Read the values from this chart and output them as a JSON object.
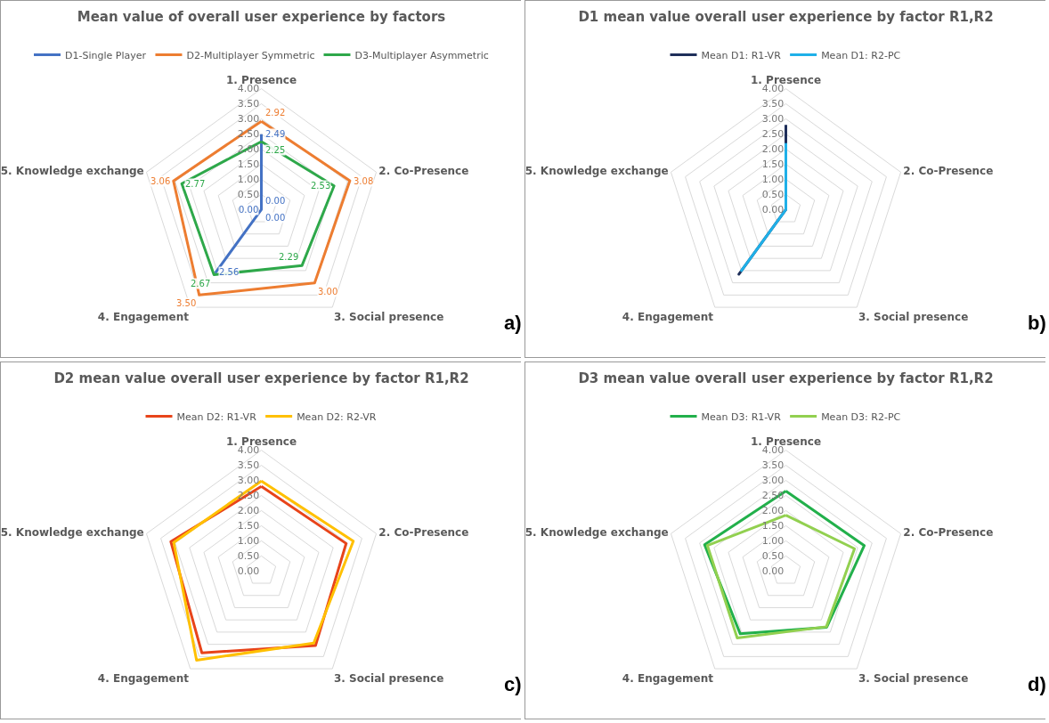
{
  "chart_data": [
    {
      "type": "radar",
      "title": "Mean value of overall user experience by factors",
      "categories": [
        "1. Presence",
        "2. Co-Presence",
        "3. Social presence",
        "4. Engagement",
        "5. Knowledge exchange"
      ],
      "ylim": [
        0,
        4
      ],
      "yticks": [
        {
          "value": 0,
          "label": "0.00"
        },
        {
          "value": 0.5,
          "label": "0.50"
        },
        {
          "value": 1,
          "label": "1.00"
        },
        {
          "value": 1.5,
          "label": "1.50"
        },
        {
          "value": 2,
          "label": "2.00"
        },
        {
          "value": 2.5,
          "label": "2.50"
        },
        {
          "value": 3,
          "label": "3.00"
        },
        {
          "value": 3.5,
          "label": "3.50"
        },
        {
          "value": 4,
          "label": "4.00"
        }
      ],
      "grid": true,
      "legend": "top",
      "marker": "none",
      "annotations": [
        "a)"
      ],
      "series": [
        {
          "name": "D1-Single Player",
          "color": "#4472c4",
          "values": [
            2.49,
            0,
            0,
            2.56,
            0
          ],
          "value_labels": [
            "2.49",
            "0.00",
            "0.00",
            "2.56",
            "0.00"
          ]
        },
        {
          "name": "D2-Multiplayer Symmetric",
          "color": "#ed7d31",
          "values": [
            2.92,
            3.08,
            3.0,
            3.5,
            3.06
          ],
          "value_labels": [
            "2.92",
            "3.08",
            "3.00",
            "3.50",
            "3.06"
          ]
        },
        {
          "name": "D3-Multiplayer Asymmetric",
          "color": "#2ea84a",
          "values": [
            2.25,
            2.53,
            2.29,
            2.67,
            2.77
          ],
          "value_labels": [
            "2.25",
            "2.53",
            "2.29",
            "2.67",
            "2.77"
          ]
        }
      ]
    },
    {
      "type": "radar",
      "title": "D1 mean value overall user experience by factor R1,R2",
      "categories": [
        "1. Presence",
        "2. Co-Presence",
        "3. Social presence",
        "4. Engagement",
        "5. Knowledge exchange"
      ],
      "ylim": [
        0,
        4
      ],
      "yticks": [
        {
          "value": 0,
          "label": "0.00"
        },
        {
          "value": 0.5,
          "label": "0.50"
        },
        {
          "value": 1,
          "label": "1.00"
        },
        {
          "value": 1.5,
          "label": "1.50"
        },
        {
          "value": 2,
          "label": "2.00"
        },
        {
          "value": 2.5,
          "label": "2.50"
        },
        {
          "value": 3,
          "label": "3.00"
        },
        {
          "value": 3.5,
          "label": "3.50"
        },
        {
          "value": 4,
          "label": "4.00"
        }
      ],
      "grid": true,
      "legend": "top",
      "marker": "none",
      "annotations": [
        "b)"
      ],
      "series": [
        {
          "name": "Mean D1: R1-VR",
          "color": "#1f2f5a",
          "values": [
            2.8,
            0,
            0,
            2.65,
            0
          ]
        },
        {
          "name": "Mean D1: R2-PC",
          "color": "#1fb0e8",
          "values": [
            2.2,
            0,
            0,
            2.5,
            0
          ]
        }
      ]
    },
    {
      "type": "radar",
      "title": "D2 mean value overall user experience by factor R1,R2",
      "categories": [
        "1. Presence",
        "2. Co-Presence",
        "3. Social presence",
        "4. Engagement",
        "5. Knowledge exchange"
      ],
      "ylim": [
        0,
        4
      ],
      "yticks": [
        {
          "value": 0,
          "label": "0.00"
        },
        {
          "value": 0.5,
          "label": "0.50"
        },
        {
          "value": 1,
          "label": "1.00"
        },
        {
          "value": 1.5,
          "label": "1.50"
        },
        {
          "value": 2,
          "label": "2.00"
        },
        {
          "value": 2.5,
          "label": "2.50"
        },
        {
          "value": 3,
          "label": "3.00"
        },
        {
          "value": 3.5,
          "label": "3.50"
        },
        {
          "value": 4,
          "label": "4.00"
        }
      ],
      "grid": true,
      "legend": "top",
      "marker": "none",
      "annotations": [
        "c)"
      ],
      "series": [
        {
          "name": "Mean D2: R1-VR",
          "color": "#e8441a",
          "values": [
            2.8,
            2.95,
            3.05,
            3.35,
            3.15
          ]
        },
        {
          "name": "Mean D2: R2-VR",
          "color": "#ffc000",
          "values": [
            2.98,
            3.2,
            2.95,
            3.65,
            3.05
          ]
        }
      ]
    },
    {
      "type": "radar",
      "title": "D3 mean value overall user experience by factor R1,R2",
      "categories": [
        "1. Presence",
        "2. Co-Presence",
        "3. Social presence",
        "4. Engagement",
        "5. Knowledge exchange"
      ],
      "ylim": [
        0,
        4
      ],
      "yticks": [
        {
          "value": 0,
          "label": "0.00"
        },
        {
          "value": 0.5,
          "label": "0.50"
        },
        {
          "value": 1,
          "label": "1.00"
        },
        {
          "value": 1.5,
          "label": "1.50"
        },
        {
          "value": 2,
          "label": "2.00"
        },
        {
          "value": 2.5,
          "label": "2.50"
        },
        {
          "value": 3,
          "label": "3.00"
        },
        {
          "value": 3.5,
          "label": "3.50"
        },
        {
          "value": 4,
          "label": "4.00"
        }
      ],
      "grid": true,
      "legend": "top",
      "marker": "none",
      "annotations": [
        "d)"
      ],
      "series": [
        {
          "name": "Mean D3: R1-VR",
          "color": "#22b04b",
          "values": [
            2.65,
            2.73,
            2.3,
            2.57,
            2.83
          ]
        },
        {
          "name": "Mean D3: R2-PC",
          "color": "#92d050",
          "values": [
            1.85,
            2.39,
            2.28,
            2.74,
            2.73
          ]
        }
      ]
    }
  ]
}
